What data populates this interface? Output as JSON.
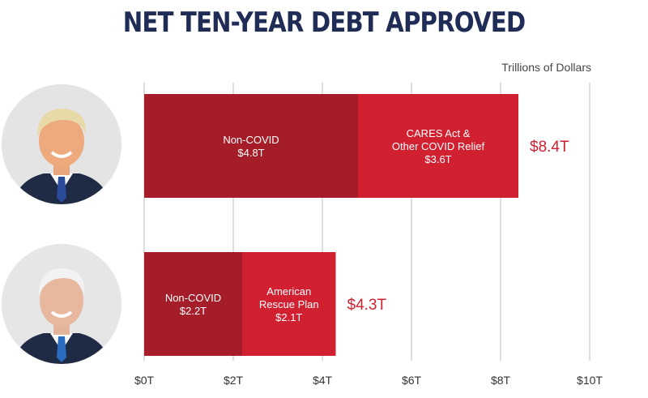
{
  "chart_data": {
    "type": "bar",
    "orientation": "horizontal",
    "stacked": true,
    "title": "NET TEN-YEAR DEBT APPROVED",
    "unit_label": "Trillions of Dollars",
    "xlim": [
      0,
      10
    ],
    "x_ticks": [
      0,
      2,
      4,
      6,
      8,
      10
    ],
    "x_tick_labels": [
      "$0T",
      "$2T",
      "$4T",
      "$6T",
      "$8T",
      "$10T"
    ],
    "grid": true,
    "rows": [
      {
        "total": 8.4,
        "total_label": "$8.4T",
        "segments": [
          {
            "lines": [
              "Non-COVID",
              "$4.8T"
            ],
            "value": 4.8,
            "color": "#a51d29"
          },
          {
            "lines": [
              "CARES Act &",
              "Other COVID Relief",
              "$3.6T"
            ],
            "value": 3.6,
            "color": "#d12030"
          }
        ]
      },
      {
        "total": 4.3,
        "total_label": "$4.3T",
        "segments": [
          {
            "lines": [
              "Non-COVID",
              "$2.2T"
            ],
            "value": 2.2,
            "color": "#a51d29"
          },
          {
            "lines": [
              "American",
              "Rescue Plan",
              "$2.1T"
            ],
            "value": 2.1,
            "color": "#d12030"
          }
        ]
      }
    ]
  },
  "colors": {
    "title": "#1f2c56",
    "total": "#d12030",
    "grid": "#c8c8c8"
  }
}
